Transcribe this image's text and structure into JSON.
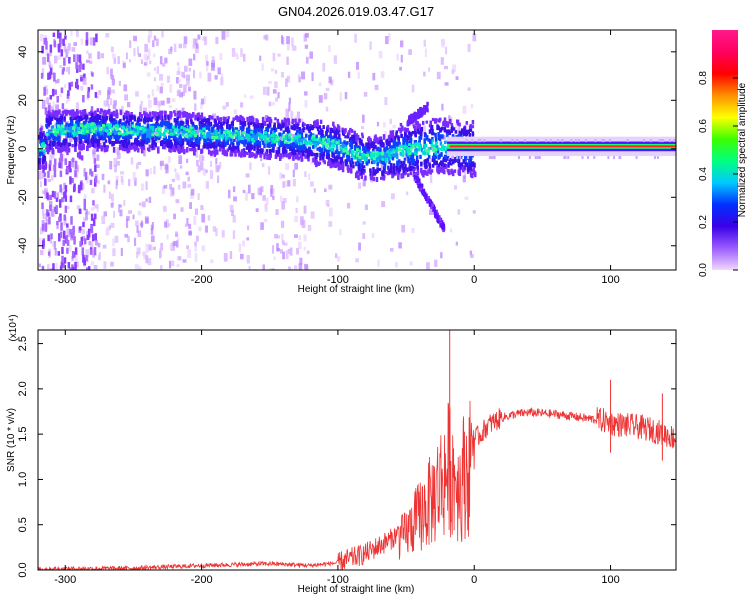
{
  "title": "GN04.2026.019.03.47.G17",
  "chart_data": [
    {
      "type": "heatmap",
      "xlabel": "Height of straight line (km)",
      "ylabel": "Frequency (Hz)",
      "xlim": [
        -320,
        148
      ],
      "ylim": [
        -50,
        49
      ],
      "xticks": [
        -300,
        -200,
        -100,
        0,
        100
      ],
      "yticks": [
        -40,
        -20,
        0,
        20,
        40
      ],
      "colorbar": {
        "label": "Normalized spectral amplitude",
        "range": [
          0,
          1
        ],
        "ticks": [
          "0.0",
          "0.2",
          "0.4",
          "0.6",
          "0.8"
        ],
        "tick_values": [
          0,
          0.2,
          0.4,
          0.6,
          0.8
        ],
        "colors": [
          "#f2d7ff",
          "#9b5cff",
          "#3a00e6",
          "#0030ff",
          "#00c8ff",
          "#00ff80",
          "#3cff00",
          "#ffff00",
          "#ff9000",
          "#ff0000",
          "#ff0060",
          "#ff1a8c"
        ]
      },
      "ridge": [
        {
          "x": -315,
          "y": 8
        },
        {
          "x": -280,
          "y": 9
        },
        {
          "x": -250,
          "y": 8
        },
        {
          "x": -220,
          "y": 8
        },
        {
          "x": -200,
          "y": 7
        },
        {
          "x": -170,
          "y": 6
        },
        {
          "x": -140,
          "y": 5
        },
        {
          "x": -120,
          "y": 4
        },
        {
          "x": -100,
          "y": 2
        },
        {
          "x": -85,
          "y": -2
        },
        {
          "x": -70,
          "y": -3
        },
        {
          "x": -55,
          "y": 0
        },
        {
          "x": -40,
          "y": 1
        },
        {
          "x": -30,
          "y": 2
        },
        {
          "x": -20,
          "y": 2
        },
        {
          "x": -10,
          "y": 1
        },
        {
          "x": 0,
          "y": 1
        },
        {
          "x": 50,
          "y": 1
        },
        {
          "x": 100,
          "y": 1
        },
        {
          "x": 148,
          "y": 1
        }
      ]
    },
    {
      "type": "line",
      "xlabel": "Height of straight line (km)",
      "ylabel": "SNR (10 * v/v)",
      "y_multiplier": "(x10⁴)",
      "xlim": [
        -320,
        148
      ],
      "ylim": [
        0,
        2.65
      ],
      "xticks": [
        -300,
        -200,
        -100,
        0,
        100
      ],
      "yticks": [
        "0.0",
        "0.5",
        "1.0",
        "1.5",
        "2.0",
        "2.5"
      ],
      "ytick_values": [
        0,
        0.5,
        1.0,
        1.5,
        2.0,
        2.5
      ],
      "series": [
        {
          "color": "#ee3333",
          "x": [
            -320,
            -250,
            -200,
            -150,
            -120,
            -100,
            -80,
            -60,
            -50,
            -40,
            -30,
            -25,
            -20,
            -18,
            -15,
            -10,
            -8,
            -5,
            0,
            5,
            10,
            20,
            30,
            40,
            50,
            60,
            70,
            80,
            90,
            95,
            100,
            110,
            120,
            130,
            140,
            148
          ],
          "y": [
            0.01,
            0.02,
            0.05,
            0.07,
            0.05,
            0.08,
            0.18,
            0.35,
            0.5,
            0.75,
            1.0,
            1.2,
            1.35,
            1.45,
            1.3,
            1.15,
            1.3,
            1.4,
            1.45,
            1.5,
            1.6,
            1.68,
            1.72,
            1.74,
            1.73,
            1.72,
            1.7,
            1.68,
            1.66,
            1.65,
            1.62,
            1.6,
            1.58,
            1.55,
            1.5,
            1.45
          ]
        }
      ],
      "peaks": [
        {
          "x": -18,
          "y": 2.65
        },
        {
          "x": 100,
          "y": 2.1
        },
        {
          "x": 138,
          "y": 1.95
        }
      ]
    }
  ]
}
